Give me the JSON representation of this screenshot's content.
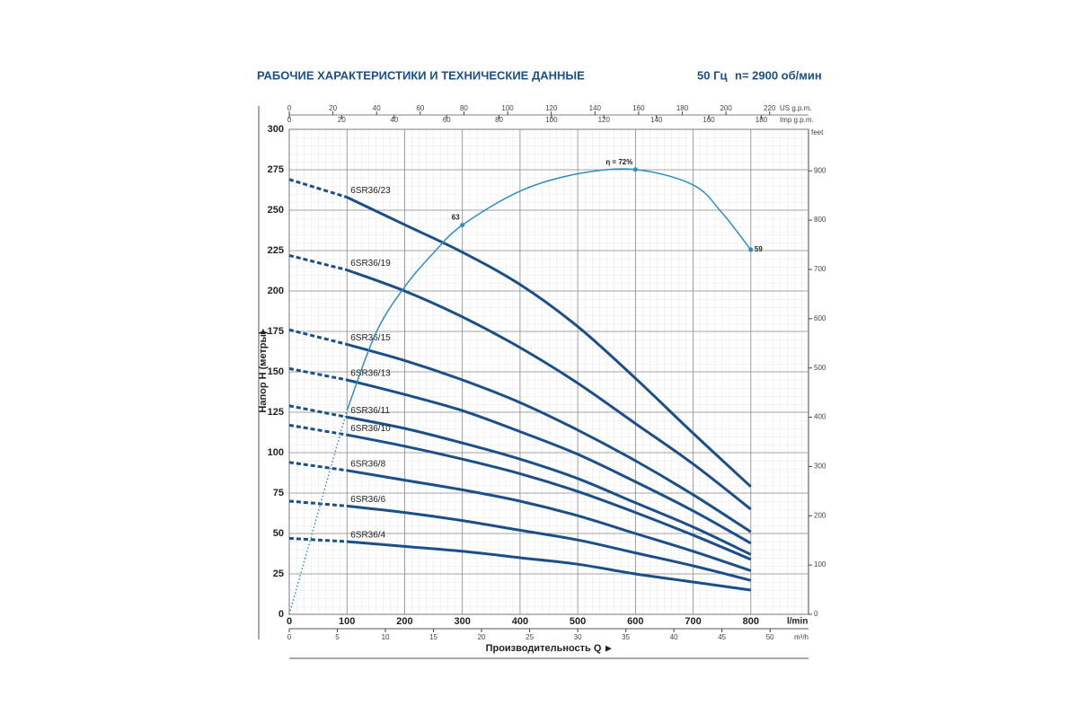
{
  "chart_data": {
    "type": "line",
    "title": "РАБОЧИЕ ХАРАКТЕРИСТИКИ И ТЕХНИЧЕСКИЕ ДАННЫЕ",
    "frequency": "50 Гц",
    "speed": "n= 2900 об/мин",
    "x_label": "Производительность Q",
    "x_unit": "l/min",
    "xlim": [
      0,
      900
    ],
    "xticks": [
      0,
      100,
      200,
      300,
      400,
      500,
      600,
      700,
      800
    ],
    "y_label": "Напор H (метры)",
    "ylim": [
      0,
      300
    ],
    "yticks": [
      0,
      25,
      50,
      75,
      100,
      125,
      150,
      175,
      200,
      225,
      250,
      275,
      300
    ],
    "y2_unit": "feet",
    "y2lim": [
      0,
      984.3
    ],
    "y2ticks": [
      0,
      100,
      200,
      300,
      400,
      500,
      600,
      700,
      800,
      900
    ],
    "extra_x_axes": [
      {
        "unit": "US g.p.m.",
        "position": "top",
        "lim": [
          0,
          237.8
        ],
        "ticks": [
          0,
          20,
          40,
          60,
          80,
          100,
          120,
          140,
          160,
          180,
          200,
          220
        ]
      },
      {
        "unit": "Imp g.p.m.",
        "position": "top",
        "lim": [
          0,
          198
        ],
        "ticks": [
          0,
          20,
          40,
          60,
          80,
          100,
          120,
          140,
          160,
          180
        ]
      },
      {
        "unit": "m³/h",
        "position": "bottom",
        "lim": [
          0,
          54
        ],
        "ticks": [
          0,
          5,
          10,
          15,
          20,
          25,
          30,
          35,
          40,
          45,
          50
        ]
      }
    ],
    "grid": true,
    "x": [
      0,
      100,
      200,
      300,
      400,
      500,
      600,
      700,
      800
    ],
    "dashed_until": 100,
    "series": [
      {
        "name": "6SR36/23",
        "color": "#1b4f8a",
        "values": [
          269,
          258,
          241,
          224,
          204,
          178,
          146,
          112,
          79
        ]
      },
      {
        "name": "6SR36/19",
        "color": "#1b4f8a",
        "values": [
          222,
          213,
          200,
          184,
          165,
          143,
          118,
          93,
          65
        ]
      },
      {
        "name": "6SR36/15",
        "color": "#1b4f8a",
        "values": [
          176,
          167,
          157,
          145,
          131,
          114,
          95,
          74,
          51
        ]
      },
      {
        "name": "6SR36/13",
        "color": "#1b4f8a",
        "values": [
          152,
          145,
          136,
          126,
          113,
          99,
          82,
          64,
          44
        ]
      },
      {
        "name": "6SR36/11",
        "color": "#1b4f8a",
        "values": [
          129,
          122,
          115,
          106,
          96,
          84,
          69,
          54,
          37
        ]
      },
      {
        "name": "6SR36/10",
        "color": "#1b4f8a",
        "values": [
          117,
          111,
          104,
          96,
          87,
          76,
          63,
          49,
          34
        ]
      },
      {
        "name": "6SR36/8",
        "color": "#1b4f8a",
        "values": [
          94,
          89,
          83,
          77,
          70,
          61,
          50,
          39,
          27
        ]
      },
      {
        "name": "6SR36/6",
        "color": "#1b4f8a",
        "values": [
          70,
          67,
          63,
          58,
          52,
          46,
          38,
          30,
          21
        ]
      },
      {
        "name": "6SR36/4",
        "color": "#1b4f8a",
        "values": [
          47,
          45,
          42,
          39,
          35,
          31,
          25,
          20,
          15
        ]
      }
    ],
    "efficiency": {
      "color": "#2b8fc4",
      "lim": [
        0,
        78.5
      ],
      "dotted_until": 100,
      "x": [
        0,
        50,
        100,
        150,
        200,
        250,
        300,
        400,
        500,
        600,
        700,
        750,
        800
      ],
      "values": [
        0,
        16.5,
        33,
        45.5,
        53,
        58.5,
        63,
        68.5,
        71.3,
        72,
        69.5,
        65,
        59
      ],
      "value_labels": [
        null,
        null,
        null,
        null,
        null,
        null,
        "63",
        null,
        null,
        "η = 72%",
        null,
        null,
        "59"
      ]
    }
  }
}
